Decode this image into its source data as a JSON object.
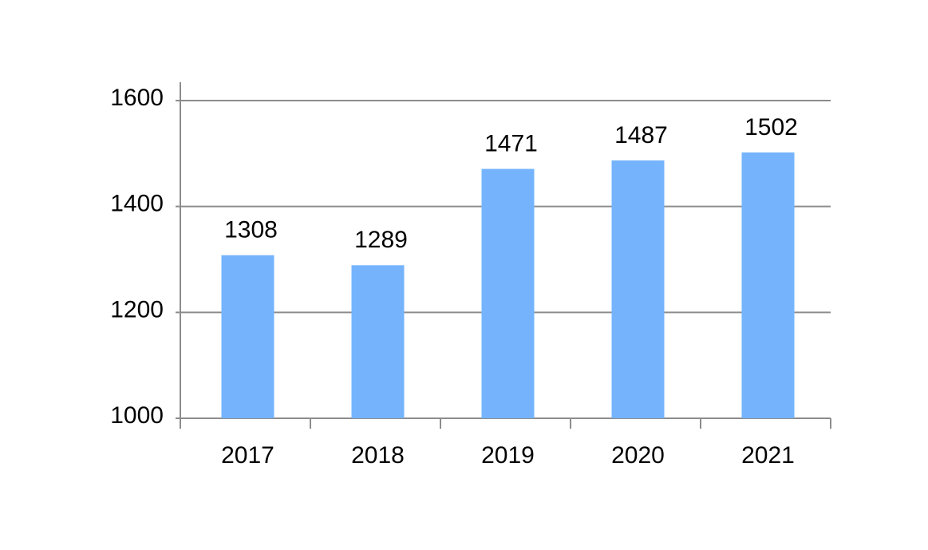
{
  "chart_data": {
    "type": "bar",
    "categories": [
      "2017",
      "2018",
      "2019",
      "2020",
      "2021"
    ],
    "values": [
      1308,
      1289,
      1471,
      1487,
      1502
    ],
    "color": "#75b4fd",
    "ylim": [
      1000,
      1600
    ],
    "yticks": [
      1000,
      1200,
      1400,
      1600
    ],
    "grid": true
  }
}
